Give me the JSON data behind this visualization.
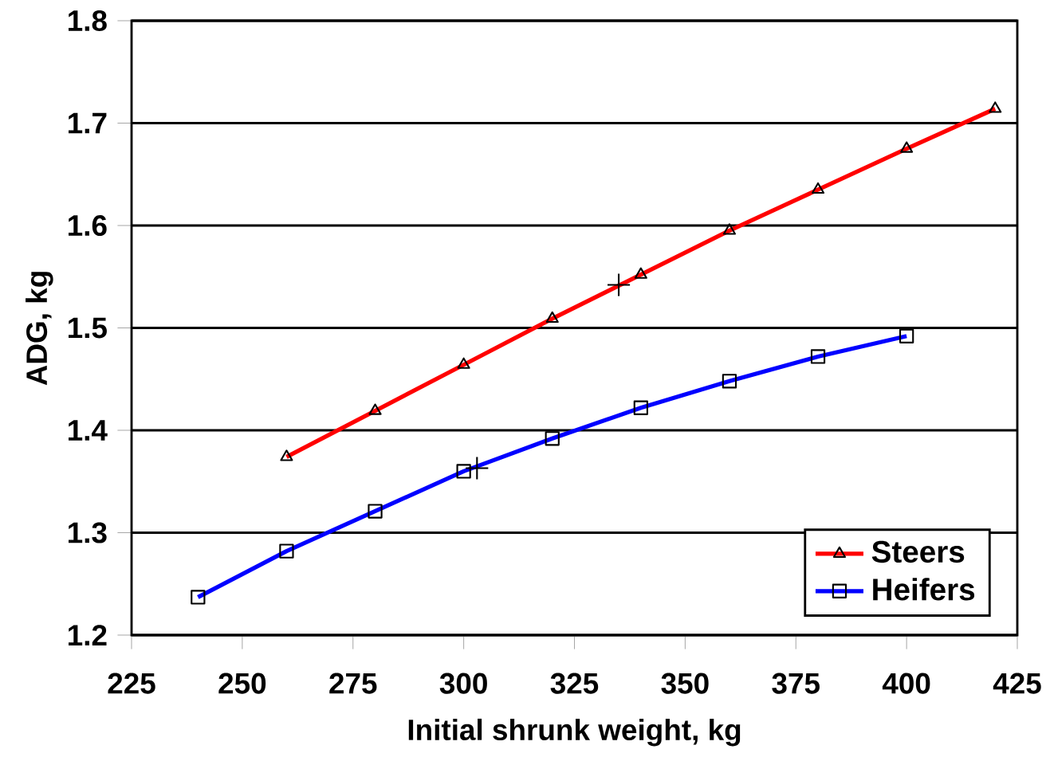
{
  "chart_data": {
    "type": "line",
    "xlabel": "Initial shrunk weight, kg",
    "ylabel": "ADG, kg",
    "xlim": [
      225,
      425
    ],
    "ylim": [
      1.2,
      1.8
    ],
    "xticks": [
      225,
      250,
      275,
      300,
      325,
      350,
      375,
      400,
      425
    ],
    "yticks": [
      1.2,
      1.3,
      1.4,
      1.5,
      1.6,
      1.7,
      1.8
    ],
    "grid": "y",
    "legend": "bottom right",
    "series": [
      {
        "name": "Steers",
        "color": "#ff0000",
        "marker": "triangle",
        "x": [
          260,
          280,
          300,
          320,
          340,
          360,
          380,
          400,
          420
        ],
        "values": [
          1.374,
          1.419,
          1.464,
          1.509,
          1.552,
          1.595,
          1.635,
          1.675,
          1.714
        ]
      },
      {
        "name": "Heifers",
        "color": "#0000ff",
        "marker": "square",
        "x": [
          240,
          260,
          280,
          300,
          320,
          340,
          360,
          380,
          400
        ],
        "values": [
          1.237,
          1.282,
          1.321,
          1.36,
          1.392,
          1.422,
          1.448,
          1.472,
          1.492
        ]
      },
      {
        "type": "scatter",
        "color": "#000000",
        "marker": "cross",
        "x": [
          335,
          303
        ],
        "values": [
          1.542,
          1.363
        ]
      }
    ]
  }
}
